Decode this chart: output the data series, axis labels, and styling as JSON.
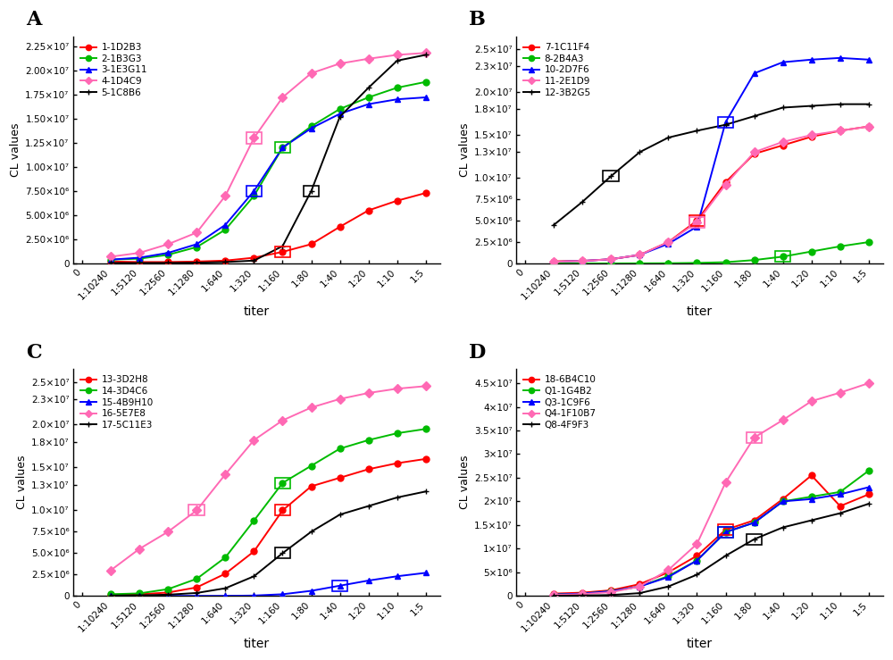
{
  "x_labels": [
    "0",
    "1:10240",
    "1:5120",
    "1:2560",
    "1:1280",
    "1:640",
    "1:320",
    "1:160",
    "1:80",
    "1:40",
    "1:20",
    "1:10",
    "1:5"
  ],
  "x_positions": [
    -1,
    0,
    1,
    2,
    3,
    4,
    5,
    6,
    7,
    8,
    9,
    10,
    11
  ],
  "data_x_positions": [
    0,
    1,
    2,
    3,
    4,
    5,
    6,
    7,
    8,
    9,
    10,
    11
  ],
  "panel_A": {
    "title": "A",
    "ylabel": "CL values",
    "xlabel": "titer",
    "ylim": [
      0,
      23500000.0
    ],
    "yticks": [
      0,
      2500000.0,
      5000000.0,
      7500000.0,
      10000000.0,
      12500000.0,
      15000000.0,
      17500000.0,
      20000000.0,
      22500000.0
    ],
    "ytick_labels": [
      "0",
      "2.50×10⁶",
      "5.00×10⁶",
      "7.50×10⁶",
      "1.00×10⁷",
      "1.25×10⁷",
      "1.50×10⁷",
      "1.75×10⁷",
      "2.00×10⁷",
      "2.25×10⁷"
    ],
    "series": [
      {
        "label": "1-1D2B3",
        "color": "#FF0000",
        "marker": "o",
        "data": [
          200000.0,
          150000.0,
          150000.0,
          200000.0,
          300000.0,
          600000.0,
          1200000.0,
          2000000.0,
          3800000.0,
          5500000.0,
          6500000.0,
          7300000.0
        ],
        "highlight_idx": 6,
        "highlight_color": "#FF0000"
      },
      {
        "label": "2-1B3G3",
        "color": "#00BB00",
        "marker": "o",
        "data": [
          400000.0,
          500000.0,
          900000.0,
          1700000.0,
          3500000.0,
          7000000.0,
          12000000.0,
          14200000.0,
          16000000.0,
          17200000.0,
          18200000.0,
          18800000.0
        ],
        "highlight_idx": 6,
        "highlight_color": "#00BB00"
      },
      {
        "label": "3-1E3G11",
        "color": "#0000FF",
        "marker": "^",
        "data": [
          400000.0,
          600000.0,
          1100000.0,
          2000000.0,
          4000000.0,
          7500000.0,
          12000000.0,
          14000000.0,
          15500000.0,
          16500000.0,
          17000000.0,
          17200000.0
        ],
        "highlight_idx": 5,
        "highlight_color": "#0000FF"
      },
      {
        "label": "4-1D4C9",
        "color": "#FF69B4",
        "marker": "D",
        "data": [
          700000.0,
          1100000.0,
          2000000.0,
          3200000.0,
          7000000.0,
          13000000.0,
          17200000.0,
          19700000.0,
          20700000.0,
          21200000.0,
          21600000.0,
          21800000.0
        ],
        "highlight_idx": 5,
        "highlight_color": "#FF69B4"
      },
      {
        "label": "5-1C8B6",
        "color": "#000000",
        "marker": "+",
        "data": [
          50000.0,
          50000.0,
          60000.0,
          80000.0,
          150000.0,
          300000.0,
          1800000.0,
          7500000.0,
          15200000.0,
          18200000.0,
          21000000.0,
          21600000.0
        ],
        "highlight_idx": 7,
        "highlight_color": "#000000"
      }
    ]
  },
  "panel_B": {
    "title": "B",
    "ylabel": "CL values",
    "xlabel": "titer",
    "ylim": [
      0,
      26500000.0
    ],
    "yticks": [
      0,
      2500000.0,
      5000000.0,
      7500000.0,
      10000000.0,
      13000000.0,
      15000000.0,
      18000000.0,
      20000000.0,
      23000000.0,
      25000000.0
    ],
    "ytick_labels": [
      "0",
      "2.5×10⁶",
      "5.0×10⁶",
      "7.5×10⁶",
      "1.0×10⁷",
      "1.3×10⁷",
      "1.5×10⁷",
      "1.8×10⁷",
      "2.0×10⁷",
      "2.3×10⁷",
      "2.5×10⁷"
    ],
    "series": [
      {
        "label": "7-1C11F4",
        "color": "#FF0000",
        "marker": "o",
        "data": [
          250000.0,
          300000.0,
          500000.0,
          1000000.0,
          2500000.0,
          5000000.0,
          9500000.0,
          12800000.0,
          13800000.0,
          14800000.0,
          15500000.0,
          16000000.0
        ],
        "highlight_idx": 5,
        "highlight_color": "#FF0000"
      },
      {
        "label": "8-2B4A3",
        "color": "#00BB00",
        "marker": "o",
        "data": [
          30000.0,
          10000.0,
          10000.0,
          20000.0,
          30000.0,
          70000.0,
          150000.0,
          400000.0,
          800000.0,
          1400000.0,
          2000000.0,
          2500000.0
        ],
        "highlight_idx": 8,
        "highlight_color": "#00BB00"
      },
      {
        "label": "10-2D7F6",
        "color": "#0000FF",
        "marker": "^",
        "data": [
          200000.0,
          300000.0,
          500000.0,
          1000000.0,
          2300000.0,
          4300000.0,
          16500000.0,
          22200000.0,
          23500000.0,
          23800000.0,
          24000000.0,
          23800000.0
        ],
        "highlight_idx": 6,
        "highlight_color": "#0000FF"
      },
      {
        "label": "11-2E1D9",
        "color": "#FF69B4",
        "marker": "D",
        "data": [
          200000.0,
          300000.0,
          500000.0,
          1000000.0,
          2500000.0,
          4800000.0,
          9200000.0,
          13000000.0,
          14200000.0,
          15000000.0,
          15500000.0,
          16000000.0
        ],
        "highlight_idx": 5,
        "highlight_color": "#FF69B4"
      },
      {
        "label": "12-3B2G5",
        "color": "#000000",
        "marker": "+",
        "data": [
          4500000.0,
          7200000.0,
          10200000.0,
          13000000.0,
          14700000.0,
          15500000.0,
          16200000.0,
          17200000.0,
          18200000.0,
          18400000.0,
          18600000.0,
          18600000.0
        ],
        "highlight_idx": 2,
        "highlight_color": "#000000"
      }
    ]
  },
  "panel_C": {
    "title": "C",
    "ylabel": "CL values",
    "xlabel": "titer",
    "ylim": [
      0,
      26500000.0
    ],
    "yticks": [
      0,
      2500000.0,
      5000000.0,
      7500000.0,
      10000000.0,
      13000000.0,
      15000000.0,
      18000000.0,
      20000000.0,
      23000000.0,
      25000000.0
    ],
    "ytick_labels": [
      "0",
      "2.5×10⁶",
      "5.0×10⁶",
      "7.5×10⁶",
      "1.0×10⁷",
      "1.3×10⁷",
      "1.5×10⁷",
      "1.8×10⁷",
      "2.0×10⁷",
      "2.3×10⁷",
      "2.5×10⁷"
    ],
    "series": [
      {
        "label": "13-3D2H8",
        "color": "#FF0000",
        "marker": "o",
        "data": [
          150000.0,
          200000.0,
          400000.0,
          1000000.0,
          2600000.0,
          5200000.0,
          10000000.0,
          12800000.0,
          13800000.0,
          14800000.0,
          15500000.0,
          16000000.0
        ],
        "highlight_idx": 6,
        "highlight_color": "#FF0000"
      },
      {
        "label": "14-3D4C6",
        "color": "#00BB00",
        "marker": "o",
        "data": [
          200000.0,
          300000.0,
          800000.0,
          2000000.0,
          4500000.0,
          8800000.0,
          13200000.0,
          15200000.0,
          17200000.0,
          18200000.0,
          19000000.0,
          19500000.0
        ],
        "highlight_idx": 6,
        "highlight_color": "#00BB00"
      },
      {
        "label": "15-4B9H10",
        "color": "#0000FF",
        "marker": "^",
        "data": [
          5000.0,
          3000.0,
          5000.0,
          5000.0,
          10000.0,
          50000.0,
          200000.0,
          600000.0,
          1200000.0,
          1800000.0,
          2300000.0,
          2700000.0
        ],
        "highlight_idx": 8,
        "highlight_color": "#0000FF"
      },
      {
        "label": "16-5E7E8",
        "color": "#FF69B4",
        "marker": "D",
        "data": [
          3000000.0,
          5500000.0,
          7500000.0,
          10000000.0,
          14200000.0,
          18200000.0,
          20500000.0,
          22000000.0,
          23000000.0,
          23700000.0,
          24200000.0,
          24500000.0
        ],
        "highlight_idx": 3,
        "highlight_color": "#FF69B4"
      },
      {
        "label": "17-5C11E3",
        "color": "#000000",
        "marker": "+",
        "data": [
          50000.0,
          80000.0,
          150000.0,
          350000.0,
          900000.0,
          2300000.0,
          5000000.0,
          7500000.0,
          9500000.0,
          10500000.0,
          11500000.0,
          12200000.0
        ],
        "highlight_idx": 6,
        "highlight_color": "#000000"
      }
    ]
  },
  "panel_D": {
    "title": "D",
    "ylabel": "CL values",
    "xlabel": "titer",
    "ylim": [
      0,
      48000000.0
    ],
    "yticks": [
      0,
      5000000.0,
      10000000.0,
      15000000.0,
      20000000.0,
      25000000.0,
      30000000.0,
      35000000.0,
      40000000.0,
      45000000.0
    ],
    "ytick_labels": [
      "0",
      "5×10⁶",
      "1×10⁷",
      "1.5×10⁷",
      "2×10⁷",
      "2.5×10⁷",
      "3×10⁷",
      "3.5×10⁷",
      "4×10⁷",
      "4.5×10⁷"
    ],
    "series": [
      {
        "label": "18-6B4C10",
        "color": "#FF0000",
        "marker": "o",
        "data": [
          500000.0,
          700000.0,
          1200000.0,
          2500000.0,
          5000000.0,
          8500000.0,
          14000000.0,
          16000000.0,
          20500000.0,
          25500000.0,
          19000000.0,
          21500000.0
        ],
        "highlight_idx": 6,
        "highlight_color": "#FF0000"
      },
      {
        "label": "Q1-1G4B2",
        "color": "#00BB00",
        "marker": "o",
        "data": [
          300000.0,
          500000.0,
          1000000.0,
          2000000.0,
          4200000.0,
          7500000.0,
          13500000.0,
          15500000.0,
          20000000.0,
          21000000.0,
          22000000.0,
          26500000.0
        ],
        "highlight_idx": 6,
        "highlight_color": "#00BB00"
      },
      {
        "label": "Q3-1C9F6",
        "color": "#0000FF",
        "marker": "^",
        "data": [
          300000.0,
          500000.0,
          1000000.0,
          2000000.0,
          4000000.0,
          7500000.0,
          13500000.0,
          15500000.0,
          20000000.0,
          20500000.0,
          21500000.0,
          23000000.0
        ],
        "highlight_idx": 6,
        "highlight_color": "#0000FF"
      },
      {
        "label": "Q4-1F10B7",
        "color": "#FF69B4",
        "marker": "D",
        "data": [
          200000.0,
          400000.0,
          800000.0,
          2000000.0,
          5500000.0,
          11000000.0,
          24000000.0,
          33500000.0,
          37200000.0,
          41200000.0,
          43000000.0,
          45000000.0
        ],
        "highlight_idx": 7,
        "highlight_color": "#FF69B4"
      },
      {
        "label": "Q8-4F9F3",
        "color": "#000000",
        "marker": "+",
        "data": [
          50000.0,
          100000.0,
          200000.0,
          600000.0,
          2000000.0,
          4500000.0,
          8500000.0,
          12000000.0,
          14500000.0,
          16000000.0,
          17500000.0,
          19500000.0
        ],
        "highlight_idx": 7,
        "highlight_color": "#000000"
      }
    ]
  }
}
